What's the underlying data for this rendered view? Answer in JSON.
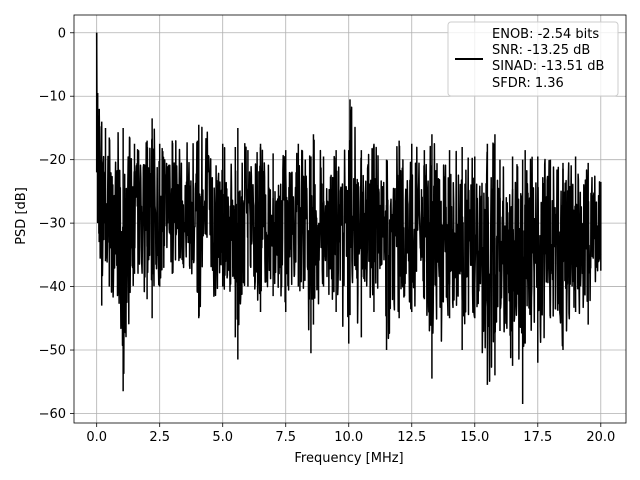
{
  "chart_data": {
    "type": "line",
    "title": "",
    "xlabel": "Frequency [MHz]",
    "ylabel": "PSD [dB]",
    "xlim": [
      -0.9,
      21.0
    ],
    "ylim": [
      -61.5,
      2.8
    ],
    "xticks": [
      0.0,
      2.5,
      5.0,
      7.5,
      10.0,
      12.5,
      15.0,
      17.5,
      20.0
    ],
    "xtick_labels": [
      "0.0",
      "2.5",
      "5.0",
      "7.5",
      "10.0",
      "12.5",
      "15.0",
      "17.5",
      "20.0"
    ],
    "yticks": [
      0,
      -10,
      -20,
      -30,
      -40,
      -50,
      -60
    ],
    "ytick_labels": [
      "0",
      "−10",
      "−20",
      "−30",
      "−40",
      "−50",
      "−60"
    ],
    "grid": true,
    "legend_position": "top-right",
    "line_color": "#000000",
    "legend": {
      "lines": [
        "ENOB: -2.54 bits",
        "SNR: -13.25 dB",
        "SINAD: -13.51 dB",
        "SFDR: 1.36"
      ]
    },
    "series": [
      {
        "x": [
          0.0,
          0.04,
          0.1,
          0.2,
          0.35,
          0.5,
          1.05,
          1.5,
          2.0,
          2.2,
          2.5,
          3.0,
          4.0,
          4.05,
          5.0,
          5.5,
          5.6,
          6.0,
          6.5,
          7.0,
          7.5,
          8.0,
          8.5,
          8.6,
          9.0,
          9.5,
          10.0,
          10.05,
          10.5,
          11.0,
          11.5,
          12.0,
          12.5,
          13.0,
          13.3,
          14.0,
          14.5,
          15.0,
          15.5,
          15.8,
          16.0,
          16.5,
          16.9,
          17.0,
          17.5,
          18.0,
          18.5,
          19.0,
          19.5,
          20.0
        ],
        "upper": [
          0.0,
          -9.5,
          -12.0,
          -14.0,
          -15.0,
          -16.5,
          -15.0,
          -17.5,
          -17.0,
          -13.5,
          -17.5,
          -17.0,
          -17.0,
          -14.5,
          -17.5,
          -18.0,
          -15.0,
          -18.5,
          -17.5,
          -19.0,
          -18.5,
          -17.5,
          -19.5,
          -16.0,
          -19.5,
          -18.5,
          -18.5,
          -10.5,
          -18.5,
          -17.5,
          -20.0,
          -17.0,
          -17.5,
          -18.5,
          -16.0,
          -18.5,
          -18.0,
          -19.5,
          -17.5,
          -16.0,
          -20.0,
          -19.5,
          -20.0,
          -18.5,
          -19.5,
          -20.0,
          -20.5,
          -19.5,
          -20.5,
          -23.5
        ],
        "lower": [
          -22.0,
          -30.0,
          -33.0,
          -43.0,
          -36.0,
          -40.0,
          -56.5,
          -38.0,
          -42.0,
          -45.0,
          -40.0,
          -38.0,
          -41.0,
          -45.0,
          -40.0,
          -48.0,
          -51.5,
          -40.0,
          -44.0,
          -41.5,
          -44.0,
          -40.0,
          -50.5,
          -46.0,
          -40.0,
          -44.0,
          -49.0,
          -44.5,
          -48.0,
          -44.0,
          -50.0,
          -45.0,
          -44.0,
          -42.0,
          -54.5,
          -45.0,
          -50.0,
          -45.0,
          -55.5,
          -54.0,
          -47.0,
          -52.5,
          -58.5,
          -49.0,
          -52.0,
          -45.0,
          -50.0,
          -44.0,
          -46.0,
          -37.5
        ]
      }
    ]
  }
}
